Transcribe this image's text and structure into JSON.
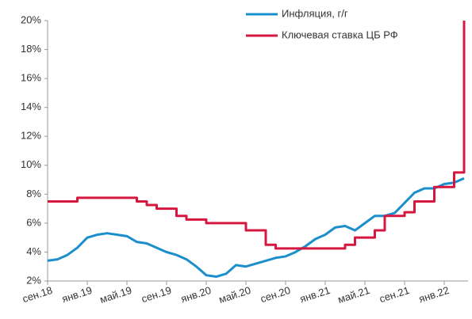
{
  "chart_data": {
    "type": "line",
    "categories": [
      "сен.18",
      null,
      null,
      null,
      "янв.19",
      null,
      null,
      null,
      "май.19",
      null,
      null,
      null,
      "сен.19",
      null,
      null,
      null,
      "янв.20",
      null,
      null,
      null,
      "май.20",
      null,
      null,
      null,
      "сен.20",
      null,
      null,
      null,
      "янв.21",
      null,
      null,
      null,
      "май.21",
      null,
      null,
      null,
      "сен.21",
      null,
      null,
      null,
      "янв.22",
      null,
      null
    ],
    "series": [
      {
        "name": "Инфляция, г/г",
        "color": "#1a8fcc",
        "step": false,
        "values": [
          3.4,
          3.5,
          3.8,
          4.3,
          5.0,
          5.2,
          5.3,
          5.2,
          5.1,
          4.7,
          4.6,
          4.3,
          4.0,
          3.8,
          3.5,
          3.0,
          2.4,
          2.3,
          2.5,
          3.1,
          3.0,
          3.2,
          3.4,
          3.6,
          3.7,
          4.0,
          4.4,
          4.9,
          5.2,
          5.7,
          5.8,
          5.5,
          6.0,
          6.5,
          6.5,
          6.7,
          7.4,
          8.1,
          8.4,
          8.4,
          8.7,
          8.8,
          9.1
        ]
      },
      {
        "name": "Ключевая ставка ЦБ РФ",
        "color": "#d6173f",
        "step": true,
        "values": [
          7.5,
          7.5,
          7.5,
          7.75,
          7.75,
          7.75,
          7.75,
          7.75,
          7.75,
          7.5,
          7.25,
          7.0,
          7.0,
          6.5,
          6.25,
          6.25,
          6.0,
          6.0,
          6.0,
          6.0,
          5.5,
          5.5,
          4.5,
          4.25,
          4.25,
          4.25,
          4.25,
          4.25,
          4.25,
          4.25,
          4.5,
          5.0,
          5.0,
          5.5,
          6.5,
          6.5,
          6.75,
          7.5,
          7.5,
          8.5,
          8.5,
          9.5,
          20
        ]
      }
    ],
    "ylim": [
      2,
      20
    ],
    "yticks": [
      {
        "value": 2,
        "label": "2%"
      },
      {
        "value": 4,
        "label": "4%"
      },
      {
        "value": 6,
        "label": "6%"
      },
      {
        "value": 8,
        "label": "8%"
      },
      {
        "value": 10,
        "label": "10%"
      },
      {
        "value": 12,
        "label": "12%"
      },
      {
        "value": 14,
        "label": "14%"
      },
      {
        "value": 16,
        "label": "16%"
      },
      {
        "value": 18,
        "label": "18%"
      },
      {
        "value": 20,
        "label": "20%"
      }
    ],
    "legend": "upper center",
    "grid": false
  }
}
